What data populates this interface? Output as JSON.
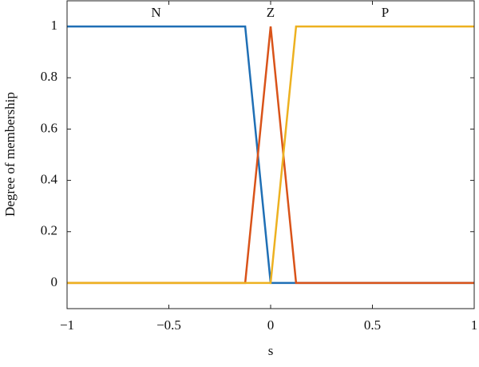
{
  "chart_data": {
    "type": "line",
    "xlabel": "s",
    "ylabel": "Degree of membership",
    "series": [
      {
        "name": "N",
        "color": "#1f6fb5",
        "x": [
          -1,
          -0.125,
          0,
          1
        ],
        "values": [
          1,
          1,
          0,
          0
        ]
      },
      {
        "name": "Z",
        "color": "#d95319",
        "x": [
          -1,
          -0.125,
          0,
          0.125,
          1
        ],
        "values": [
          0,
          0,
          1,
          0,
          0
        ]
      },
      {
        "name": "P",
        "color": "#edb120",
        "x": [
          -1,
          0,
          0.125,
          1
        ],
        "values": [
          0,
          0,
          1,
          1
        ]
      }
    ],
    "xlim": [
      -1,
      1
    ],
    "xticks": [
      {
        "value": -1,
        "label": "−1"
      },
      {
        "value": -0.5,
        "label": "−0.5"
      },
      0,
      0.5,
      1
    ],
    "ylim": [
      -0.1,
      1.1
    ],
    "yticks": [
      0,
      0.2,
      0.4,
      0.6,
      0.8,
      1
    ],
    "grid": false
  }
}
